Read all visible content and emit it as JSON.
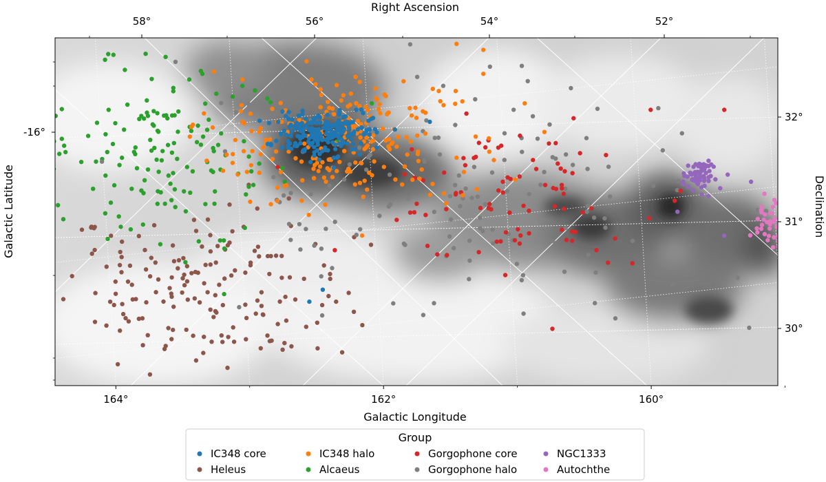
{
  "chart_data": {
    "type": "scatter",
    "title": "",
    "top_axis": {
      "label": "Right Ascension",
      "ticks": [
        {
          "value": 58,
          "label": "58°"
        },
        {
          "value": 56,
          "label": "56°"
        },
        {
          "value": 54,
          "label": "54°"
        },
        {
          "value": 52,
          "label": "52°"
        }
      ]
    },
    "bottom_axis": {
      "label": "Galactic Longitude",
      "ticks": [
        {
          "value": 164,
          "label": "164°"
        },
        {
          "value": 162,
          "label": "162°"
        },
        {
          "value": 160,
          "label": "160°"
        }
      ]
    },
    "left_axis": {
      "label": "Galactic Latitude",
      "ticks": [
        {
          "value": -16,
          "label": "-16°"
        }
      ]
    },
    "right_axis": {
      "label": "Declination",
      "ticks": [
        {
          "value": 32,
          "label": "32°"
        },
        {
          "value": 31,
          "label": "31°"
        },
        {
          "value": 30,
          "label": "30°"
        }
      ]
    },
    "xlim": [
      164.3,
      158.9
    ],
    "ylim": [
      -18.2,
      -15.3
    ],
    "grid": true,
    "background": "grayscale dust extinction map",
    "legend": {
      "title": "Group",
      "placement": "bottom-center"
    },
    "series": [
      {
        "name": "IC348 core",
        "color": "#1f77b4",
        "center": [
          162.3,
          -16.1
        ],
        "spread": [
          0.18,
          0.09
        ],
        "count": 230,
        "points": [
          [
            161.5,
            -16.0
          ],
          [
            162.4,
            -17.5
          ],
          [
            162.3,
            -17.4
          ],
          [
            162.05,
            -15.9
          ]
        ]
      },
      {
        "name": "IC348 halo",
        "color": "#ff7f0e",
        "center": [
          162.1,
          -16.15
        ],
        "spread": [
          0.5,
          0.28
        ],
        "count": 230,
        "points": [
          [
            161.3,
            -15.35
          ],
          [
            161.1,
            -15.4
          ],
          [
            161.1,
            -15.6
          ],
          [
            161.3,
            -16.3
          ],
          [
            162.9,
            -16.0
          ]
        ]
      },
      {
        "name": "Gorgophone core",
        "color": "#d62728",
        "center": [
          160.9,
          -16.6
        ],
        "spread": [
          0.55,
          0.28
        ],
        "count": 85,
        "points": [
          [
            159.85,
            -15.9
          ],
          [
            159.3,
            -15.9
          ],
          [
            160.5,
            -16.6
          ],
          [
            160.8,
            -16.7
          ],
          [
            161.0,
            -17.0
          ]
        ]
      },
      {
        "name": "Gorgophone halo",
        "color": "#7f7f7f",
        "center": [
          161.3,
          -16.7
        ],
        "spread": [
          1.1,
          0.55
        ],
        "count": 150,
        "points": [
          [
            163.4,
            -15.5
          ],
          [
            159.2,
            -17.3
          ],
          [
            160.8,
            -17.6
          ],
          [
            161.4,
            -15.7
          ]
        ]
      },
      {
        "name": "Heleus",
        "color": "#8c564b",
        "center": [
          163.2,
          -17.4
        ],
        "spread": [
          0.55,
          0.35
        ],
        "count": 170,
        "points": [
          [
            163.8,
            -17.0
          ],
          [
            162.8,
            -17.6
          ],
          [
            162.2,
            -17.5
          ],
          [
            162.6,
            -17.9
          ]
        ]
      },
      {
        "name": "Alcaeus",
        "color": "#2ca02c",
        "center": [
          163.5,
          -16.25
        ],
        "spread": [
          0.45,
          0.35
        ],
        "count": 150,
        "points": [
          [
            163.8,
            -16.3
          ],
          [
            163.9,
            -15.9
          ],
          [
            163.2,
            -15.6
          ],
          [
            162.9,
            -15.7
          ]
        ]
      },
      {
        "name": "NGC1333",
        "color": "#9467bd",
        "center": [
          159.5,
          -16.45
        ],
        "spread": [
          0.06,
          0.06
        ],
        "count": 70,
        "points": [
          [
            159.1,
            -16.5
          ],
          [
            159.65,
            -16.75
          ],
          [
            159.3,
            -16.95
          ]
        ]
      },
      {
        "name": "Autochthe",
        "color": "#e377c2",
        "center": [
          158.95,
          -16.85
        ],
        "spread": [
          0.06,
          0.09
        ],
        "count": 35,
        "points": [
          [
            159.0,
            -16.6
          ],
          [
            158.9,
            -16.95
          ]
        ]
      }
    ]
  }
}
